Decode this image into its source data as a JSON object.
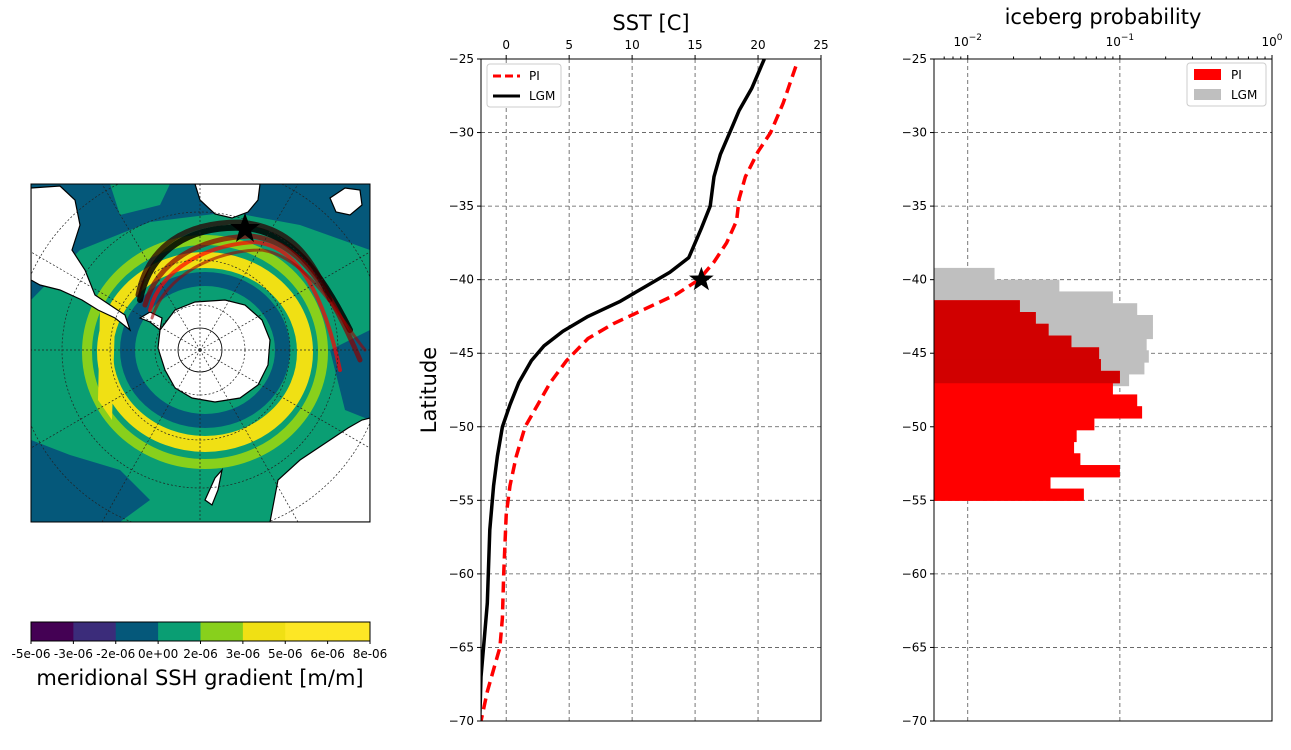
{
  "chart_data": [
    {
      "type": "heatmap",
      "name": "map",
      "title": "",
      "colorbar": {
        "label": "meridional SSH gradient [m/m]",
        "ticks": [
          "-5e-06",
          "-3e-06",
          "-2e-06",
          "0e+00",
          "2e-06",
          "3e-06",
          "5e-06",
          "6e-06",
          "8e-06"
        ],
        "colors": [
          "#440154",
          "#3b2c7a",
          "#05587a",
          "#0a9e73",
          "#88d01c",
          "#f0e014",
          "#fde725",
          "#fde725"
        ]
      },
      "marker": "star"
    },
    {
      "type": "line",
      "name": "sst",
      "title": "SST [C]",
      "ylabel": "Latitude",
      "xlim": [
        -2,
        25
      ],
      "ylim": [
        -70,
        -25
      ],
      "xticks": [
        0,
        5,
        10,
        15,
        20,
        25
      ],
      "yticks": [
        -25,
        -30,
        -35,
        -40,
        -45,
        -50,
        -55,
        -60,
        -65,
        -70
      ],
      "grid": true,
      "legend": "top-left",
      "series": [
        {
          "name": "PI",
          "color": "#ff0000",
          "dash": true,
          "points": [
            [
              23.0,
              -25.5
            ],
            [
              22.0,
              -28
            ],
            [
              21.0,
              -30
            ],
            [
              20.0,
              -31.3
            ],
            [
              19.0,
              -33
            ],
            [
              18.5,
              -34.5
            ],
            [
              18.3,
              -36
            ],
            [
              17.5,
              -37.5
            ],
            [
              16.5,
              -38.8
            ],
            [
              15.3,
              -40
            ],
            [
              13.5,
              -41
            ],
            [
              11.0,
              -42
            ],
            [
              8.5,
              -43
            ],
            [
              6.5,
              -44
            ],
            [
              4.8,
              -45.5
            ],
            [
              3.5,
              -47
            ],
            [
              2.5,
              -48.5
            ],
            [
              1.5,
              -50
            ],
            [
              0.8,
              -52
            ],
            [
              0.3,
              -54
            ],
            [
              0.0,
              -56
            ],
            [
              -0.2,
              -60
            ],
            [
              -0.3,
              -63
            ],
            [
              -0.5,
              -65
            ],
            [
              -1.0,
              -66.5
            ],
            [
              -1.5,
              -68
            ],
            [
              -2.0,
              -70
            ]
          ]
        },
        {
          "name": "LGM",
          "color": "#000000",
          "dash": false,
          "points": [
            [
              20.5,
              -25
            ],
            [
              19.5,
              -27
            ],
            [
              18.5,
              -28.5
            ],
            [
              18.0,
              -29.5
            ],
            [
              17.0,
              -31.5
            ],
            [
              16.5,
              -33
            ],
            [
              16.2,
              -35
            ],
            [
              15.5,
              -36.5
            ],
            [
              14.5,
              -38.5
            ],
            [
              13.0,
              -39.5
            ],
            [
              11.0,
              -40.5
            ],
            [
              9.0,
              -41.5
            ],
            [
              6.5,
              -42.5
            ],
            [
              4.5,
              -43.5
            ],
            [
              3.0,
              -44.5
            ],
            [
              2.0,
              -45.5
            ],
            [
              1.0,
              -47
            ],
            [
              0.3,
              -48.5
            ],
            [
              -0.3,
              -50
            ],
            [
              -0.7,
              -52
            ],
            [
              -1.0,
              -54
            ],
            [
              -1.3,
              -57
            ],
            [
              -1.5,
              -62
            ],
            [
              -1.7,
              -64
            ],
            [
              -2.0,
              -67
            ],
            [
              -2.1,
              -70
            ]
          ]
        }
      ],
      "annotations": [
        {
          "type": "star",
          "x": 15.5,
          "y": -40
        }
      ]
    },
    {
      "type": "bar",
      "name": "iceberg",
      "title": "iceberg probability",
      "xscale": "log",
      "xlim": [
        0.006,
        1
      ],
      "ylim": [
        -70,
        -25
      ],
      "xticks": [
        {
          "value": 0.01,
          "base": "10",
          "exp": "−2"
        },
        {
          "value": 0.1,
          "base": "10",
          "exp": "−1"
        },
        {
          "value": 1,
          "base": "10",
          "exp": "0"
        }
      ],
      "yticks": [
        -25,
        -30,
        -35,
        -40,
        -45,
        -50,
        -55,
        -60,
        -65,
        -70
      ],
      "grid": true,
      "legend": "top-right",
      "orientation": "horizontal",
      "bin_width": 0.8,
      "series": [
        {
          "name": "LGM",
          "color": "#bfbfbf",
          "bars": [
            [
              -39.6,
              0.015
            ],
            [
              -40.4,
              0.04
            ],
            [
              -41.2,
              0.09
            ],
            [
              -42.0,
              0.13
            ],
            [
              -42.8,
              0.165
            ],
            [
              -43.6,
              0.165
            ],
            [
              -44.4,
              0.15
            ],
            [
              -45.2,
              0.155
            ],
            [
              -46.0,
              0.145
            ],
            [
              -46.8,
              0.115
            ]
          ]
        },
        {
          "name": "PI",
          "color": "#ff0000",
          "bars": [
            [
              -41.8,
              0.022
            ],
            [
              -42.6,
              0.028
            ],
            [
              -43.4,
              0.034
            ],
            [
              -44.2,
              0.048
            ],
            [
              -45.0,
              0.073
            ],
            [
              -45.8,
              0.075
            ],
            [
              -46.6,
              0.1
            ],
            [
              -47.4,
              0.09
            ],
            [
              -48.2,
              0.13
            ],
            [
              -49.0,
              0.14
            ],
            [
              -49.8,
              0.068
            ],
            [
              -50.6,
              0.052
            ],
            [
              -51.4,
              0.05
            ],
            [
              -52.2,
              0.055
            ],
            [
              -53.0,
              0.1
            ],
            [
              -53.8,
              0.035
            ],
            [
              -54.6,
              0.058
            ]
          ]
        }
      ],
      "overlap_color": "#d10000"
    }
  ]
}
